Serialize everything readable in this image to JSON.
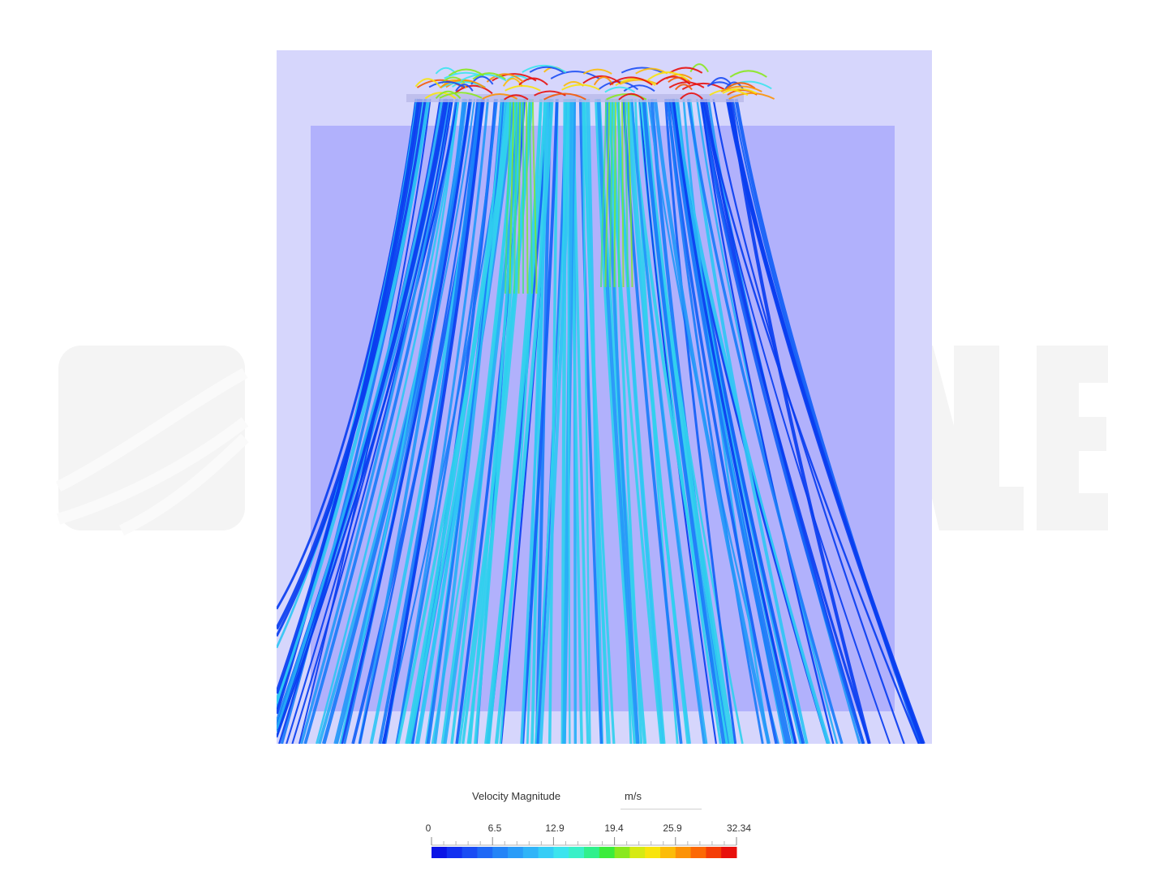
{
  "legend": {
    "title": "Velocity Magnitude",
    "unit": "m/s",
    "range": [
      0,
      32.34
    ],
    "ticks": [
      "0",
      "6.5",
      "12.9",
      "19.4",
      "25.9",
      "32.34"
    ],
    "colors": [
      "#0a14e6",
      "#1230f0",
      "#1a4cf4",
      "#1f68f6",
      "#2484f7",
      "#2a9cf8",
      "#30b4f8",
      "#36cdf6",
      "#3ce4ee",
      "#3af0c8",
      "#30f08c",
      "#3cec3c",
      "#8ae81e",
      "#d6ea12",
      "#f8e40c",
      "#fcbc08",
      "#fc9206",
      "#fc6804",
      "#f43c06",
      "#e8100c"
    ]
  },
  "scene": {
    "background_color": "#d2d2fc",
    "domain_box_color": "#aaaafc",
    "watermark_color": "#f3f3f3"
  }
}
